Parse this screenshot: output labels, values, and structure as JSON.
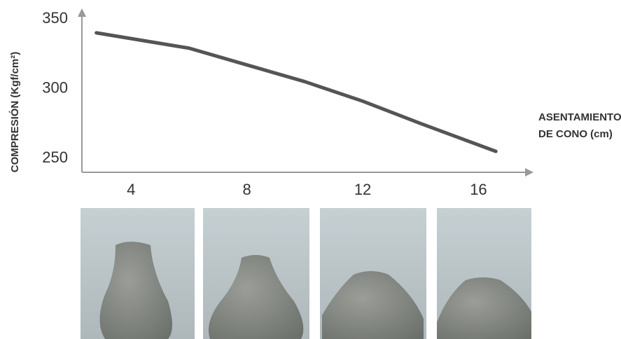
{
  "chart_data": {
    "type": "line",
    "y_label": "COMPRESIÓN (Kgf/cm²)",
    "x_label": [
      "ASENTAMIENTO",
      "DE  CONO (cm)"
    ],
    "x": [
      2.8,
      6,
      8,
      10,
      12,
      14,
      16.6
    ],
    "series": [
      {
        "color": "#555555",
        "values": [
          340,
          329,
          317,
          305,
          291,
          275,
          255
        ]
      }
    ],
    "xlim": [
      2.3,
      17.9
    ],
    "ylim": [
      240,
      356
    ],
    "xticks": [
      4,
      8,
      12,
      16
    ],
    "yticks": [
      250,
      300,
      350
    ],
    "grid": false
  }
}
